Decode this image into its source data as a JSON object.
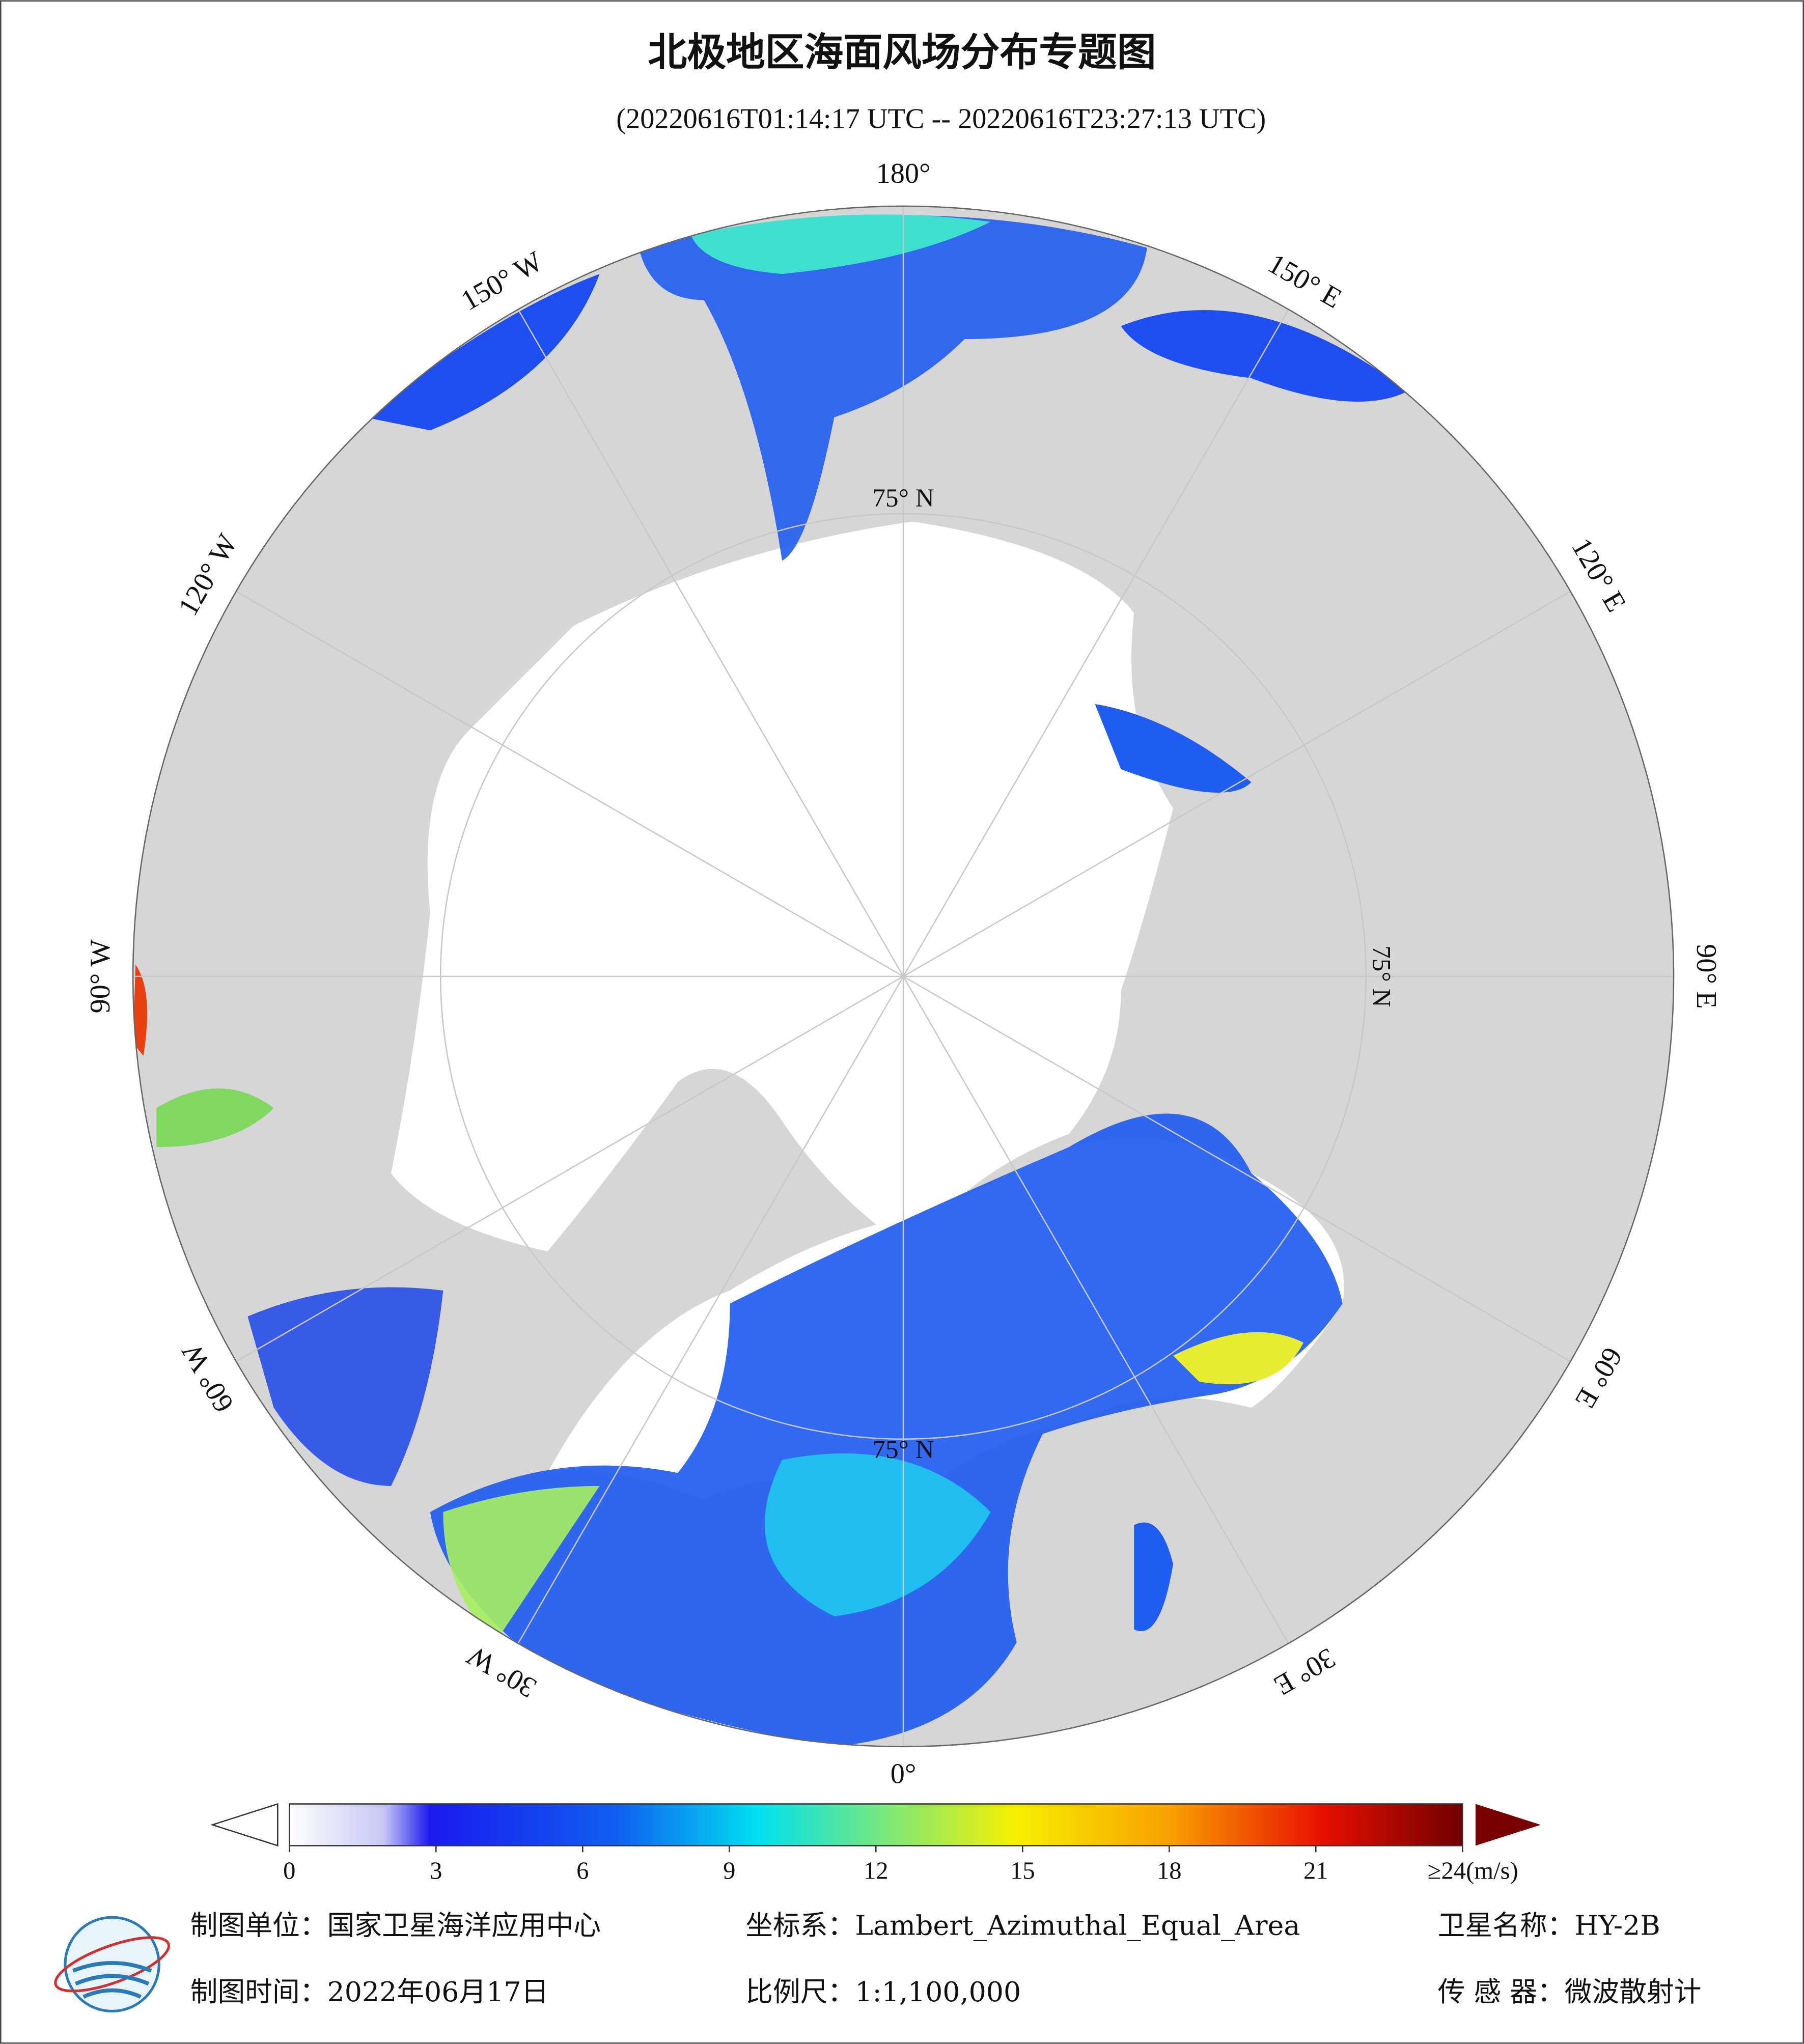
{
  "title": "北极地区海面风场分布专题图",
  "subtitle": "(20220616T01:14:17 UTC -- 20220616T23:27:13 UTC)",
  "map": {
    "meridians": [
      {
        "value": 180,
        "label": "180°"
      },
      {
        "value": 150,
        "label": "150° E"
      },
      {
        "value": 120,
        "label": "120° E"
      },
      {
        "value": 90,
        "label": "90° E"
      },
      {
        "value": 60,
        "label": "60° E"
      },
      {
        "value": 30,
        "label": "30° E"
      },
      {
        "value": 0,
        "label": "0°"
      },
      {
        "value": -30,
        "label": "30° W"
      },
      {
        "value": -60,
        "label": "60° W"
      },
      {
        "value": -90,
        "label": "90° W"
      },
      {
        "value": -120,
        "label": "120° W"
      },
      {
        "value": -150,
        "label": "150° W"
      }
    ],
    "parallels": [
      {
        "value": 75,
        "label": "75° N"
      }
    ]
  },
  "colorbar": {
    "ticks": [
      0,
      3,
      6,
      9,
      12,
      15,
      18,
      21,
      {
        "value": 24,
        "label": "≥24(m/s)"
      }
    ]
  },
  "footer": {
    "unit": "制图单位：国家卫星海洋应用中心",
    "coordinate_system": "坐标系：Lambert_Azimuthal_Equal_Area",
    "satellite": "卫星名称：HY-2B",
    "date": "制图时间：2022年06月17日",
    "scale": "比例尺：1:1,100,000",
    "sensor": "传 感 器：微波散射计"
  }
}
